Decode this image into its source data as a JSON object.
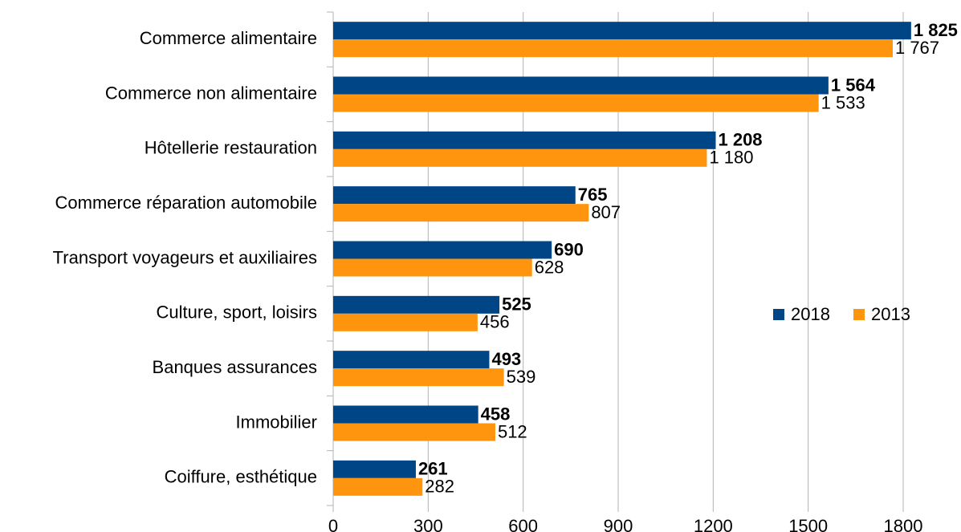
{
  "chart_data": {
    "type": "bar",
    "orientation": "horizontal",
    "categories": [
      "Commerce alimentaire",
      "Commerce non alimentaire",
      "Hôtellerie restauration",
      "Commerce réparation automobile",
      "Transport voyageurs et auxiliaires",
      "Culture, sport, loisirs",
      "Banques assurances",
      "Immobilier",
      "Coiffure, esthétique"
    ],
    "series": [
      {
        "name": "2018",
        "color": "#004586",
        "values": [
          1825,
          1564,
          1208,
          765,
          690,
          525,
          493,
          458,
          261
        ],
        "value_labels": [
          "1 825",
          "1 564",
          "1 208",
          "765",
          "690",
          "525",
          "493",
          "458",
          "261"
        ]
      },
      {
        "name": "2013",
        "color": "#ff950e",
        "values": [
          1767,
          1533,
          1180,
          807,
          628,
          456,
          539,
          512,
          282
        ],
        "value_labels": [
          "1 767",
          "1 533",
          "1 180",
          "807",
          "628",
          "456",
          "539",
          "512",
          "282"
        ]
      }
    ],
    "xlim": [
      0,
      1800
    ],
    "xticks": [
      0,
      300,
      600,
      900,
      1200,
      1500,
      1800
    ],
    "grid": true,
    "legend": "right"
  }
}
